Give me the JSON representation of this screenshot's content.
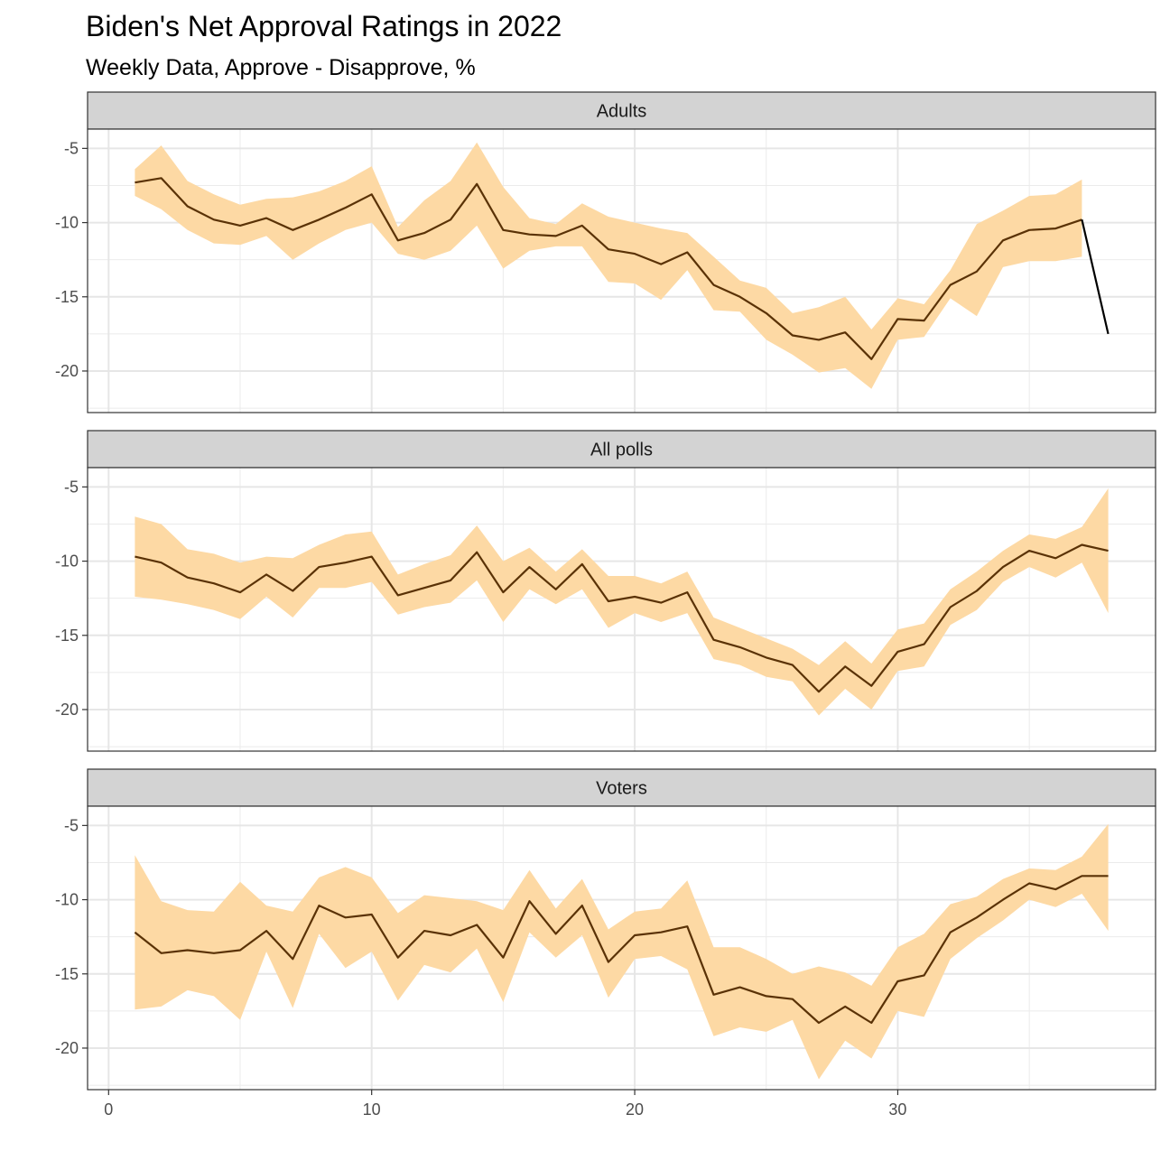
{
  "chart_data": {
    "type": "line",
    "title": "Biden's Net Approval Ratings in 2022",
    "subtitle": "Weekly Data, Approve - Disapprove, %",
    "xlabel": "",
    "ylabel": "",
    "xlim": [
      -0.8,
      39.8
    ],
    "ylim": [
      -22.8,
      -3.7
    ],
    "x_ticks": [
      0,
      10,
      20,
      30
    ],
    "y_ticks": [
      -5,
      -10,
      -15,
      -20
    ],
    "grid": true,
    "colors": {
      "band": "#fdd9a4",
      "line": "#5a3206",
      "extra_segment": "#000000",
      "strip": "#d3d3d3"
    },
    "panels": [
      {
        "name": "Adults",
        "x": [
          1,
          2,
          3,
          4,
          5,
          6,
          7,
          8,
          9,
          10,
          11,
          12,
          13,
          14,
          15,
          16,
          17,
          18,
          19,
          20,
          21,
          22,
          23,
          24,
          25,
          26,
          27,
          28,
          29,
          30,
          31,
          32,
          33,
          34,
          35,
          36,
          37
        ],
        "values": [
          -7.3,
          -7.0,
          -8.9,
          -9.8,
          -10.2,
          -9.7,
          -10.5,
          -9.8,
          -9.0,
          -8.1,
          -11.2,
          -10.7,
          -9.8,
          -7.4,
          -10.5,
          -10.8,
          -10.9,
          -10.2,
          -11.8,
          -12.1,
          -12.8,
          -12.0,
          -14.2,
          -15.0,
          -16.1,
          -17.6,
          -17.9,
          -17.4,
          -19.2,
          -16.5,
          -16.6,
          -14.2,
          -13.3,
          -11.2,
          -10.5,
          -10.4,
          -9.8
        ],
        "lower": [
          -8.2,
          -9.1,
          -10.5,
          -11.4,
          -11.5,
          -10.9,
          -12.5,
          -11.4,
          -10.5,
          -10.0,
          -12.1,
          -12.5,
          -11.9,
          -10.2,
          -13.1,
          -11.9,
          -11.6,
          -11.6,
          -14.0,
          -14.1,
          -15.2,
          -13.2,
          -15.9,
          -16.0,
          -17.9,
          -18.9,
          -20.1,
          -19.8,
          -21.2,
          -17.9,
          -17.7,
          -15.1,
          -16.3,
          -13.0,
          -12.6,
          -12.6,
          -12.3
        ],
        "upper": [
          -6.4,
          -4.8,
          -7.2,
          -8.1,
          -8.8,
          -8.4,
          -8.3,
          -7.9,
          -7.2,
          -6.2,
          -10.3,
          -8.5,
          -7.2,
          -4.6,
          -7.6,
          -9.7,
          -10.1,
          -8.7,
          -9.6,
          -10.0,
          -10.4,
          -10.7,
          -12.3,
          -13.9,
          -14.4,
          -16.1,
          -15.7,
          -15.0,
          -17.2,
          -15.1,
          -15.5,
          -13.2,
          -10.1,
          -9.2,
          -8.2,
          -8.1,
          -7.1
        ],
        "extra_segment": {
          "from": [
            37,
            -9.8
          ],
          "to": [
            38,
            -17.5
          ]
        }
      },
      {
        "name": "All polls",
        "x": [
          1,
          2,
          3,
          4,
          5,
          6,
          7,
          8,
          9,
          10,
          11,
          12,
          13,
          14,
          15,
          16,
          17,
          18,
          19,
          20,
          21,
          22,
          23,
          24,
          25,
          26,
          27,
          28,
          29,
          30,
          31,
          32,
          33,
          34,
          35,
          36,
          37,
          38
        ],
        "values": [
          -9.7,
          -10.1,
          -11.1,
          -11.5,
          -12.1,
          -10.9,
          -12.0,
          -10.4,
          -10.1,
          -9.7,
          -12.3,
          -11.8,
          -11.3,
          -9.4,
          -12.1,
          -10.4,
          -11.9,
          -10.2,
          -12.7,
          -12.4,
          -12.8,
          -12.1,
          -15.3,
          -15.8,
          -16.5,
          -17.0,
          -18.8,
          -17.1,
          -18.4,
          -16.1,
          -15.6,
          -13.1,
          -12.0,
          -10.4,
          -9.3,
          -9.8,
          -8.9,
          -9.3
        ],
        "lower": [
          -12.4,
          -12.6,
          -12.9,
          -13.3,
          -13.9,
          -12.4,
          -13.8,
          -11.8,
          -11.8,
          -11.4,
          -13.6,
          -13.1,
          -12.8,
          -11.3,
          -14.1,
          -11.9,
          -12.9,
          -11.9,
          -14.5,
          -13.5,
          -14.1,
          -13.5,
          -16.6,
          -17.0,
          -17.8,
          -18.1,
          -20.4,
          -18.6,
          -20.0,
          -17.4,
          -17.1,
          -14.3,
          -13.3,
          -11.4,
          -10.4,
          -11.1,
          -10.1,
          -13.5
        ],
        "upper": [
          -7.0,
          -7.5,
          -9.2,
          -9.5,
          -10.1,
          -9.7,
          -9.8,
          -8.9,
          -8.2,
          -8.0,
          -10.9,
          -10.2,
          -9.6,
          -7.6,
          -10.0,
          -9.1,
          -10.7,
          -9.2,
          -11.0,
          -11.0,
          -11.5,
          -10.7,
          -13.8,
          -14.5,
          -15.2,
          -15.9,
          -17.0,
          -15.4,
          -16.9,
          -14.6,
          -14.2,
          -11.9,
          -10.7,
          -9.3,
          -8.2,
          -8.5,
          -7.7,
          -5.1
        ]
      },
      {
        "name": "Voters",
        "x": [
          1,
          2,
          3,
          4,
          5,
          6,
          7,
          8,
          9,
          10,
          11,
          12,
          13,
          14,
          15,
          16,
          17,
          18,
          19,
          20,
          21,
          22,
          23,
          24,
          25,
          26,
          27,
          28,
          29,
          30,
          31,
          32,
          33,
          34,
          35,
          36,
          37,
          38
        ],
        "values": [
          -12.2,
          -13.6,
          -13.4,
          -13.6,
          -13.4,
          -12.1,
          -14.0,
          -10.4,
          -11.2,
          -11.0,
          -13.9,
          -12.1,
          -12.4,
          -11.7,
          -13.9,
          -10.1,
          -12.3,
          -10.4,
          -14.2,
          -12.4,
          -12.2,
          -11.8,
          -16.4,
          -15.9,
          -16.5,
          -16.7,
          -18.3,
          -17.2,
          -18.3,
          -15.5,
          -15.1,
          -12.2,
          -11.2,
          -10.0,
          -8.9,
          -9.3,
          -8.4,
          -8.4
        ],
        "lower": [
          -17.4,
          -17.2,
          -16.1,
          -16.5,
          -18.1,
          -13.5,
          -17.3,
          -12.3,
          -14.6,
          -13.5,
          -16.8,
          -14.4,
          -14.9,
          -13.3,
          -16.9,
          -12.2,
          -13.9,
          -12.4,
          -16.6,
          -14.0,
          -13.8,
          -14.7,
          -19.2,
          -18.6,
          -18.9,
          -18.1,
          -22.1,
          -19.5,
          -20.7,
          -17.5,
          -17.9,
          -14.0,
          -12.6,
          -11.4,
          -10.0,
          -10.5,
          -9.6,
          -12.1
        ],
        "upper": [
          -7.0,
          -10.1,
          -10.7,
          -10.8,
          -8.8,
          -10.4,
          -10.8,
          -8.5,
          -7.8,
          -8.5,
          -10.9,
          -9.7,
          -9.9,
          -10.1,
          -10.7,
          -8.0,
          -10.6,
          -8.6,
          -12.0,
          -10.8,
          -10.6,
          -8.7,
          -13.2,
          -13.2,
          -14.0,
          -15.0,
          -14.5,
          -14.9,
          -15.8,
          -13.2,
          -12.3,
          -10.3,
          -9.8,
          -8.6,
          -7.9,
          -8.0,
          -7.1,
          -4.9
        ]
      }
    ]
  }
}
